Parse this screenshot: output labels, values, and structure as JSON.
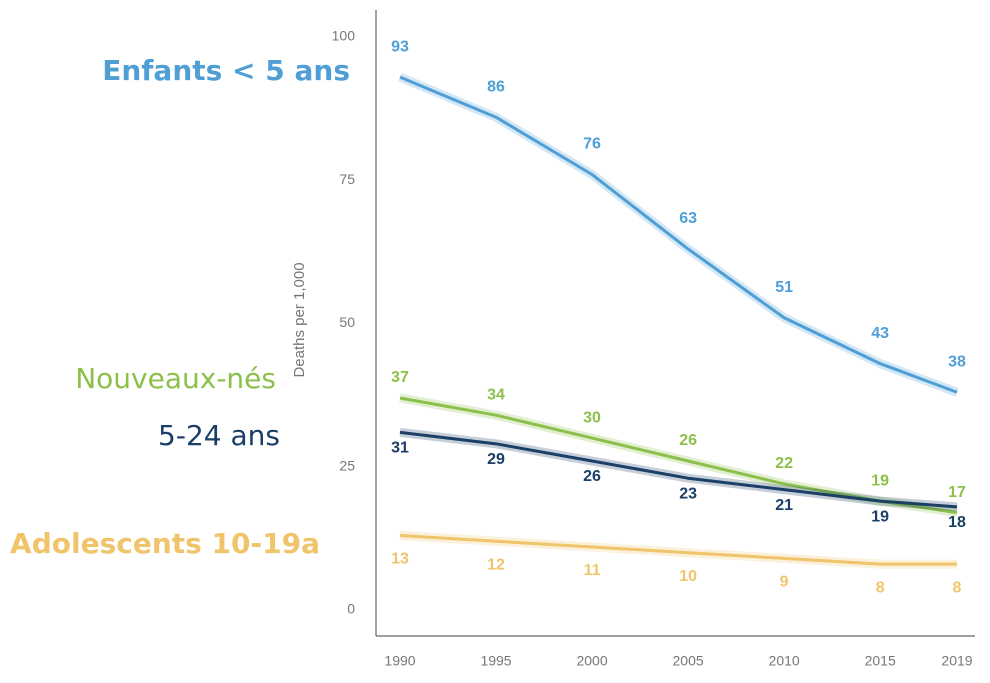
{
  "chart_data": {
    "type": "line",
    "y_label": "Deaths per 1,000",
    "x": [
      1990,
      1995,
      2000,
      2005,
      2010,
      2015,
      2019
    ],
    "xlim": [
      1990,
      2019
    ],
    "xticks": [
      1990,
      1995,
      2000,
      2005,
      2010,
      2015,
      2019
    ],
    "ylim": [
      0,
      100
    ],
    "yticks": [
      0,
      25,
      50,
      75,
      100
    ],
    "series": [
      {
        "name": "Enfants < 5 ans",
        "color": "#4f9fd6",
        "values": [
          93,
          86,
          76,
          63,
          51,
          43,
          38
        ]
      },
      {
        "name": "Nouveaux-nés",
        "color": "#8cc04a",
        "values": [
          37,
          34,
          30,
          26,
          22,
          19,
          17
        ]
      },
      {
        "name": "5-24 ans",
        "color": "#1b3f66",
        "values": [
          31,
          29,
          26,
          23,
          21,
          19,
          18
        ]
      },
      {
        "name": "Adolescents 10-19a",
        "color": "#f0c46a",
        "values": [
          13,
          12,
          11,
          10,
          9,
          8,
          8
        ]
      }
    ]
  }
}
